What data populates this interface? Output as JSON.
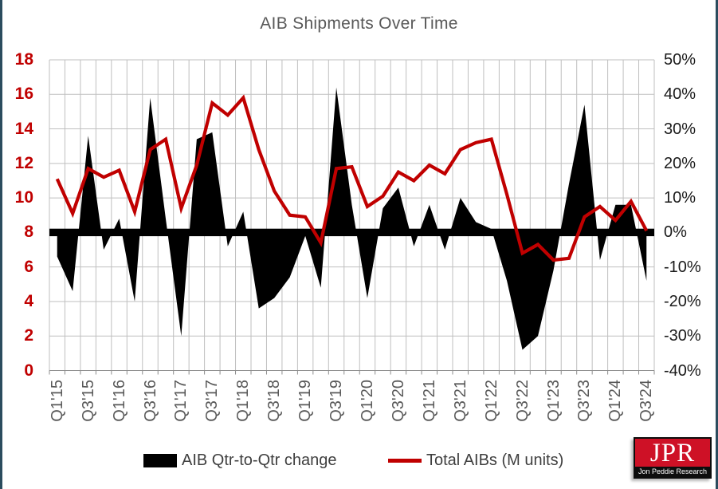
{
  "window": {
    "edge_color": "#2B4C5E"
  },
  "chart_data": {
    "type": "combo",
    "title": "AIB Shipments Over Time",
    "categories": [
      "Q1'15",
      "Q2'15",
      "Q3'15",
      "Q4'15",
      "Q1'16",
      "Q2'16",
      "Q3'16",
      "Q4'16",
      "Q1'17",
      "Q2'17",
      "Q3'17",
      "Q4'17",
      "Q1'18",
      "Q2'18",
      "Q3'18",
      "Q4'18",
      "Q1'19",
      "Q2'19",
      "Q3'19",
      "Q4'19",
      "Q1'20",
      "Q2'20",
      "Q3'20",
      "Q4'20",
      "Q1'21",
      "Q2'21",
      "Q3'21",
      "Q4'21",
      "Q1'22",
      "Q2'22",
      "Q3'22",
      "Q4'22",
      "Q1'23",
      "Q2'23",
      "Q3'23",
      "Q4'23",
      "Q1'24",
      "Q2'24",
      "Q3'24"
    ],
    "x_axis": {
      "visible_tick_labels": [
        "Q1'15",
        "Q3'15",
        "Q1'16",
        "Q3'16",
        "Q1'17",
        "Q3'17",
        "Q1'18",
        "Q3'18",
        "Q1'19",
        "Q3'19",
        "Q1'20",
        "Q3'20",
        "Q1'21",
        "Q3'21",
        "Q1'22",
        "Q3'22",
        "Q1'23",
        "Q3'23",
        "Q1'24",
        "Q3'24"
      ]
    },
    "left_axis": {
      "min": 0,
      "max": 18,
      "step": 2,
      "tick_labels": [
        "0",
        "2",
        "4",
        "6",
        "8",
        "10",
        "12",
        "14",
        "16",
        "18"
      ],
      "color": "#C00000"
    },
    "right_axis": {
      "min": -40,
      "max": 50,
      "step": 10,
      "tick_labels": [
        "-40%",
        "-30%",
        "-20%",
        "-10%",
        "0%",
        "10%",
        "20%",
        "30%",
        "40%",
        "50%"
      ],
      "color": "#1A1A1A"
    },
    "series": [
      {
        "name": "AIB Qtr-to-Qtr change",
        "type": "area",
        "axis": "right",
        "unit": "%",
        "color": "#000000",
        "values": [
          -7,
          -17,
          28,
          -5,
          4,
          -20,
          39,
          4,
          -30,
          27,
          29,
          -4,
          6,
          -22,
          -19,
          -13,
          -1,
          -16,
          42,
          8,
          -19,
          7,
          13,
          -4,
          8,
          -5,
          10,
          3,
          1,
          -14,
          -34,
          -30,
          -11,
          14,
          37,
          -8,
          8,
          8,
          -14
        ]
      },
      {
        "name": "Total AIBs (M units)",
        "type": "line",
        "axis": "left",
        "unit": "M units",
        "color": "#C00000",
        "values": [
          11.1,
          9.1,
          11.7,
          11.2,
          11.6,
          9.2,
          12.8,
          13.4,
          9.4,
          11.9,
          15.5,
          14.8,
          15.8,
          12.8,
          10.4,
          9.0,
          8.9,
          7.4,
          11.7,
          11.8,
          9.5,
          10.1,
          11.5,
          11.0,
          11.9,
          11.4,
          12.8,
          13.2,
          13.4,
          10.2,
          6.8,
          7.3,
          6.4,
          6.5,
          8.9,
          9.5,
          8.7,
          9.8,
          8.1
        ]
      }
    ],
    "grid": true,
    "legend_position": "bottom",
    "colors": {
      "grid": "#BFBFBF",
      "axis_line": "#8C8C8C",
      "zero_bar": "#000000",
      "title": "#595959",
      "x_labels": "#595959",
      "legend_text": "#3F3F3F"
    }
  },
  "logo": {
    "acronym": "JPR",
    "name": "Jon Peddie Research",
    "bg": "#CE1126"
  }
}
